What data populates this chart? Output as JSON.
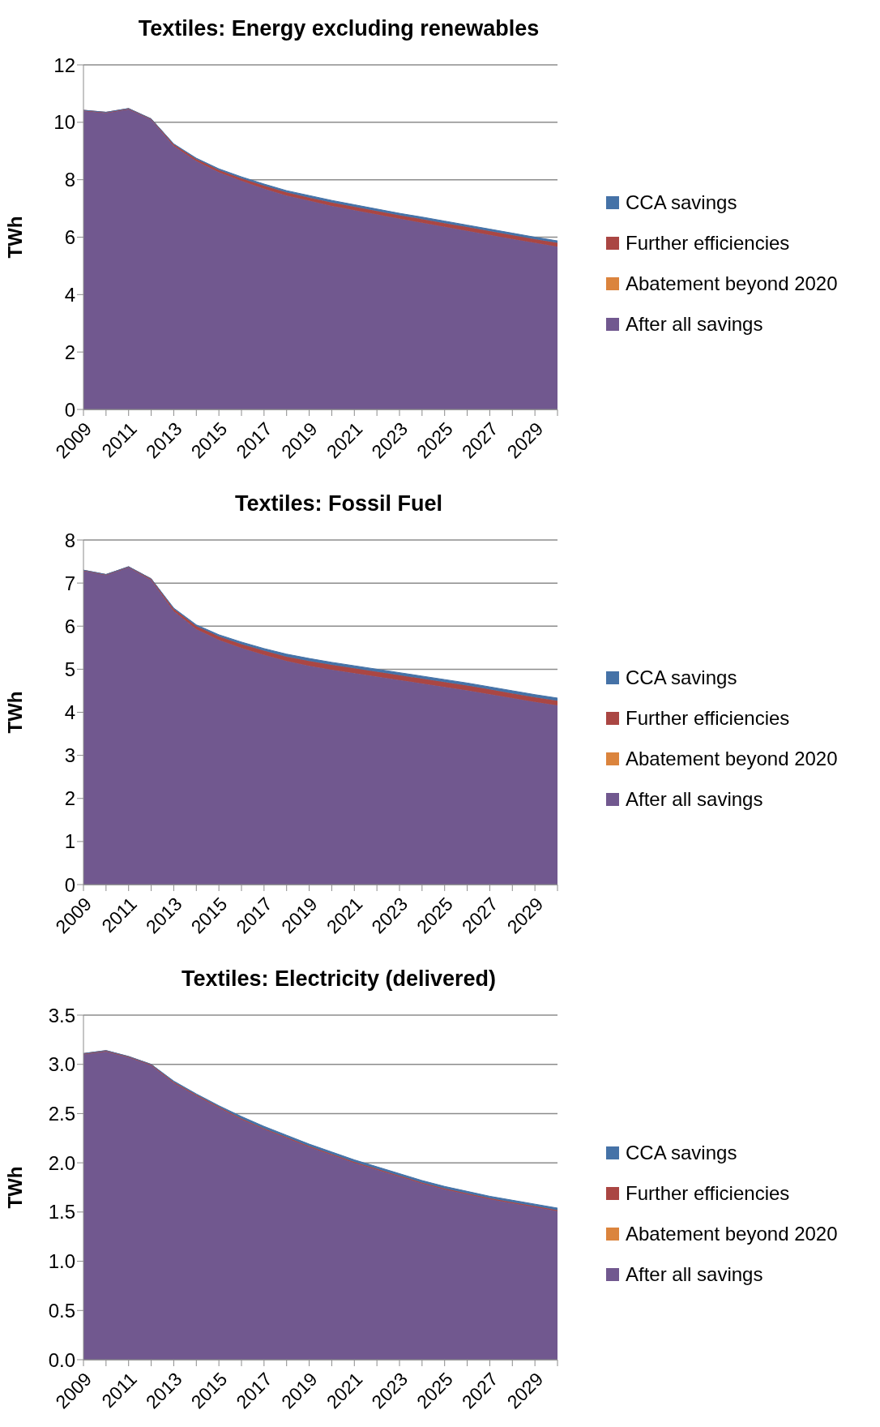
{
  "chart_data": [
    {
      "type": "area",
      "title": "Textiles: Energy excluding renewables",
      "ylabel": "TWh",
      "stacked": true,
      "grid": "y",
      "legend": "right",
      "categories": [
        "2009",
        null,
        "2011",
        null,
        "2013",
        null,
        "2015",
        null,
        "2017",
        null,
        "2019",
        null,
        "2021",
        null,
        "2023",
        null,
        "2025",
        null,
        "2027",
        null,
        "2029",
        null
      ],
      "ylim": [
        0,
        12
      ],
      "yticks": [
        0,
        2,
        4,
        6,
        8,
        10,
        12
      ],
      "series": [
        {
          "name": "After all savings",
          "color": "#71588f",
          "values": [
            10.39,
            10.32,
            10.45,
            10.09,
            9.18,
            8.65,
            8.26,
            7.96,
            7.69,
            7.45,
            7.27,
            7.09,
            6.94,
            6.79,
            6.64,
            6.5,
            6.36,
            6.22,
            6.08,
            5.94,
            5.8,
            5.67
          ]
        },
        {
          "name": "Abatement beyond 2020",
          "color": "#db843d",
          "values": [
            null,
            null,
            null,
            null,
            null,
            null,
            null,
            null,
            null,
            null,
            null,
            null,
            null,
            null,
            null,
            null,
            null,
            null,
            null,
            null,
            null,
            null
          ]
        },
        {
          "name": "Further efficiencies",
          "color": "#aa4643",
          "values": [
            0.03,
            0.03,
            0.03,
            0.03,
            0.05,
            0.07,
            0.08,
            0.09,
            0.1,
            0.11,
            0.11,
            0.12,
            0.12,
            0.12,
            0.12,
            0.13,
            0.13,
            0.13,
            0.13,
            0.13,
            0.13,
            0.13
          ]
        },
        {
          "name": "CCA savings",
          "color": "#4572a7",
          "values": [
            0,
            0,
            0,
            0,
            0.02,
            0.03,
            0.04,
            0.05,
            0.06,
            0.06,
            0.07,
            0.07,
            0.07,
            0.07,
            0.07,
            0.07,
            0.07,
            0.07,
            0.07,
            0.07,
            0.07,
            0.07
          ]
        }
      ]
    },
    {
      "type": "area",
      "title": "Textiles: Fossil Fuel",
      "ylabel": "TWh",
      "stacked": true,
      "grid": "y",
      "legend": "right",
      "categories": [
        "2009",
        null,
        "2011",
        null,
        "2013",
        null,
        "2015",
        null,
        "2017",
        null,
        "2019",
        null,
        "2021",
        null,
        "2023",
        null,
        "2025",
        null,
        "2027",
        null,
        "2029",
        null
      ],
      "ylim": [
        0,
        8
      ],
      "yticks": [
        0,
        1,
        2,
        3,
        4,
        5,
        6,
        7,
        8
      ],
      "series": [
        {
          "name": "After all savings",
          "color": "#71588f",
          "values": [
            7.28,
            7.18,
            7.36,
            7.07,
            6.35,
            5.93,
            5.68,
            5.49,
            5.33,
            5.19,
            5.08,
            4.99,
            4.91,
            4.83,
            4.75,
            4.67,
            4.59,
            4.51,
            4.42,
            4.33,
            4.24,
            4.16
          ]
        },
        {
          "name": "Abatement beyond 2020",
          "color": "#db843d",
          "values": [
            null,
            null,
            null,
            null,
            null,
            null,
            null,
            null,
            null,
            null,
            null,
            null,
            null,
            null,
            null,
            null,
            null,
            null,
            null,
            null,
            null,
            null
          ]
        },
        {
          "name": "Further efficiencies",
          "color": "#aa4643",
          "values": [
            0.02,
            0.02,
            0.02,
            0.03,
            0.05,
            0.07,
            0.08,
            0.09,
            0.1,
            0.1,
            0.11,
            0.11,
            0.11,
            0.11,
            0.11,
            0.11,
            0.11,
            0.11,
            0.11,
            0.11,
            0.11,
            0.11
          ]
        },
        {
          "name": "CCA savings",
          "color": "#4572a7",
          "values": [
            0,
            0,
            0,
            0,
            0.02,
            0.03,
            0.04,
            0.05,
            0.05,
            0.06,
            0.06,
            0.06,
            0.06,
            0.06,
            0.06,
            0.06,
            0.06,
            0.06,
            0.06,
            0.06,
            0.06,
            0.06
          ]
        }
      ]
    },
    {
      "type": "area",
      "title": "Textiles: Electricity (delivered)",
      "ylabel": "TWh",
      "stacked": true,
      "grid": "y",
      "legend": "right",
      "categories": [
        "2009",
        null,
        "2011",
        null,
        "2013",
        null,
        "2015",
        null,
        "2017",
        null,
        "2019",
        null,
        "2021",
        null,
        "2023",
        null,
        "2025",
        null,
        "2027",
        null,
        "2029",
        null
      ],
      "ylim": [
        0,
        3.5
      ],
      "yticks": [
        {
          "value": 0,
          "label": "0.0"
        },
        {
          "value": 0.5,
          "label": "0.5"
        },
        {
          "value": 1,
          "label": "1.0"
        },
        {
          "value": 1.5,
          "label": "1.5"
        },
        {
          "value": 2,
          "label": "2.0"
        },
        {
          "value": 2.5,
          "label": "2.5"
        },
        {
          "value": 3,
          "label": "3.0"
        },
        {
          "value": 3.5,
          "label": "3.5"
        }
      ],
      "series": [
        {
          "name": "After all savings",
          "color": "#71588f",
          "values": [
            3.1,
            3.13,
            3.07,
            2.99,
            2.81,
            2.68,
            2.56,
            2.44,
            2.34,
            2.25,
            2.16,
            2.08,
            2.0,
            1.93,
            1.86,
            1.79,
            1.73,
            1.68,
            1.63,
            1.59,
            1.55,
            1.51
          ]
        },
        {
          "name": "Abatement beyond 2020",
          "color": "#db843d",
          "values": [
            null,
            null,
            null,
            null,
            null,
            null,
            null,
            null,
            null,
            null,
            null,
            null,
            null,
            null,
            null,
            null,
            null,
            null,
            null,
            null,
            null,
            null
          ]
        },
        {
          "name": "Further efficiencies",
          "color": "#aa4643",
          "values": [
            0.01,
            0.01,
            0.01,
            0.01,
            0.01,
            0.01,
            0.01,
            0.01,
            0.01,
            0.01,
            0.01,
            0.01,
            0.01,
            0.01,
            0.01,
            0.01,
            0.01,
            0.01,
            0.01,
            0.01,
            0.01,
            0.01
          ]
        },
        {
          "name": "CCA savings",
          "color": "#4572a7",
          "values": [
            0,
            0,
            0,
            0,
            0.01,
            0.01,
            0.01,
            0.02,
            0.02,
            0.02,
            0.02,
            0.02,
            0.02,
            0.02,
            0.02,
            0.02,
            0.02,
            0.02,
            0.02,
            0.02,
            0.02,
            0.02
          ]
        }
      ]
    }
  ]
}
